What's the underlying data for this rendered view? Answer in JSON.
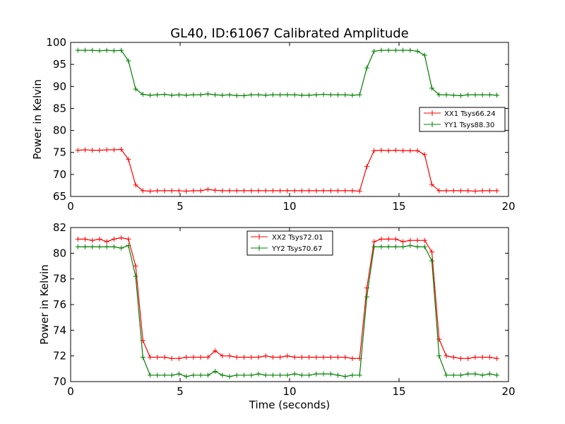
{
  "title": "GL40, ID:61067 Calibrated Amplitude",
  "xlabel": "Time (seconds)",
  "colors": {
    "red": "#ff0000",
    "green": "#008000"
  },
  "chart_data": [
    {
      "type": "line",
      "ylabel": "Power in Kelvin",
      "xlim": [
        0,
        20
      ],
      "ylim": [
        65,
        100
      ],
      "xticks": [
        0,
        5,
        10,
        15,
        20
      ],
      "yticks": [
        65,
        70,
        75,
        80,
        85,
        90,
        95,
        100
      ],
      "legend_placement": "center-right",
      "x": [
        0.33,
        0.66,
        0.99,
        1.32,
        1.65,
        1.98,
        2.31,
        2.64,
        2.97,
        3.3,
        3.63,
        3.96,
        4.29,
        4.62,
        4.95,
        5.28,
        5.61,
        5.94,
        6.27,
        6.6,
        6.93,
        7.26,
        7.59,
        7.92,
        8.25,
        8.58,
        8.91,
        9.24,
        9.57,
        9.9,
        10.23,
        10.56,
        10.89,
        11.22,
        11.55,
        11.88,
        12.21,
        12.54,
        12.87,
        13.2,
        13.53,
        13.86,
        14.19,
        14.52,
        14.85,
        15.18,
        15.51,
        15.84,
        16.17,
        16.5,
        16.83,
        17.16,
        17.49,
        17.82,
        18.15,
        18.48,
        18.81,
        19.14,
        19.47
      ],
      "series": [
        {
          "name": "XX1 Tsys66.24",
          "color": "#ff0000",
          "values": [
            75.5,
            75.6,
            75.5,
            75.5,
            75.6,
            75.6,
            75.7,
            73.4,
            67.6,
            66.3,
            66.2,
            66.3,
            66.3,
            66.3,
            66.3,
            66.2,
            66.3,
            66.3,
            66.6,
            66.4,
            66.3,
            66.3,
            66.3,
            66.3,
            66.3,
            66.3,
            66.3,
            66.3,
            66.3,
            66.3,
            66.3,
            66.3,
            66.3,
            66.3,
            66.3,
            66.3,
            66.3,
            66.3,
            66.3,
            66.2,
            71.8,
            75.4,
            75.5,
            75.4,
            75.5,
            75.4,
            75.4,
            75.4,
            74.5,
            67.7,
            66.3,
            66.3,
            66.3,
            66.3,
            66.3,
            66.2,
            66.3,
            66.3,
            66.3
          ]
        },
        {
          "name": "YY1 Tsys88.30",
          "color": "#008000",
          "values": [
            98.2,
            98.2,
            98.2,
            98.1,
            98.2,
            98.1,
            98.2,
            95.8,
            89.4,
            88.2,
            88.0,
            88.1,
            88.2,
            88.0,
            88.1,
            88.0,
            88.1,
            88.1,
            88.3,
            88.1,
            88.0,
            88.1,
            87.9,
            87.9,
            88.1,
            88.1,
            88.0,
            88.1,
            88.1,
            88.1,
            88.1,
            88.0,
            88.0,
            88.1,
            88.2,
            88.1,
            88.1,
            88.1,
            88.0,
            88.1,
            94.2,
            98.0,
            98.2,
            98.2,
            98.2,
            98.2,
            98.2,
            98.0,
            97.1,
            89.6,
            88.1,
            88.1,
            88.0,
            87.9,
            88.1,
            88.1,
            88.1,
            88.1,
            88.0
          ]
        }
      ]
    },
    {
      "type": "line",
      "ylabel": "Power in Kelvin",
      "xlabel": "Time (seconds)",
      "xlim": [
        0,
        20
      ],
      "ylim": [
        70,
        82
      ],
      "xticks": [
        0,
        5,
        10,
        15,
        20
      ],
      "yticks": [
        70,
        72,
        74,
        76,
        78,
        80,
        82
      ],
      "legend_placement": "upper-center",
      "x": [
        0.33,
        0.66,
        0.99,
        1.32,
        1.65,
        1.98,
        2.31,
        2.64,
        2.97,
        3.3,
        3.63,
        3.96,
        4.29,
        4.62,
        4.95,
        5.28,
        5.61,
        5.94,
        6.27,
        6.6,
        6.93,
        7.26,
        7.59,
        7.92,
        8.25,
        8.58,
        8.91,
        9.24,
        9.57,
        9.9,
        10.23,
        10.56,
        10.89,
        11.22,
        11.55,
        11.88,
        12.21,
        12.54,
        12.87,
        13.2,
        13.53,
        13.86,
        14.19,
        14.52,
        14.85,
        15.18,
        15.51,
        15.84,
        16.17,
        16.5,
        16.83,
        17.16,
        17.49,
        17.82,
        18.15,
        18.48,
        18.81,
        19.14,
        19.47
      ],
      "series": [
        {
          "name": "XX2 Tsys72.01",
          "color": "#ff0000",
          "values": [
            81.1,
            81.1,
            81.0,
            81.1,
            80.9,
            81.1,
            81.2,
            81.1,
            79.0,
            73.2,
            71.9,
            71.9,
            71.9,
            71.8,
            71.8,
            71.9,
            71.9,
            71.9,
            71.9,
            72.4,
            72.0,
            72.0,
            71.9,
            71.9,
            71.9,
            71.9,
            72.0,
            71.9,
            71.9,
            72.0,
            71.9,
            71.9,
            71.9,
            71.9,
            71.9,
            71.9,
            71.9,
            71.9,
            71.8,
            71.8,
            77.3,
            80.9,
            81.1,
            81.1,
            81.1,
            80.9,
            81.0,
            81.0,
            81.0,
            80.1,
            73.3,
            72.0,
            71.9,
            71.8,
            71.8,
            71.9,
            71.9,
            71.9,
            71.8
          ]
        },
        {
          "name": "YY2 Tsys70.67",
          "color": "#008000",
          "values": [
            80.5,
            80.5,
            80.5,
            80.5,
            80.5,
            80.5,
            80.4,
            80.6,
            78.2,
            71.9,
            70.5,
            70.5,
            70.5,
            70.5,
            70.6,
            70.4,
            70.5,
            70.5,
            70.5,
            70.8,
            70.5,
            70.4,
            70.5,
            70.5,
            70.5,
            70.6,
            70.5,
            70.5,
            70.5,
            70.5,
            70.6,
            70.5,
            70.5,
            70.6,
            70.6,
            70.6,
            70.5,
            70.4,
            70.5,
            70.5,
            76.6,
            80.5,
            80.5,
            80.5,
            80.5,
            80.5,
            80.6,
            80.5,
            80.5,
            79.4,
            72.0,
            70.5,
            70.5,
            70.5,
            70.6,
            70.6,
            70.5,
            70.6,
            70.5
          ]
        }
      ]
    }
  ]
}
